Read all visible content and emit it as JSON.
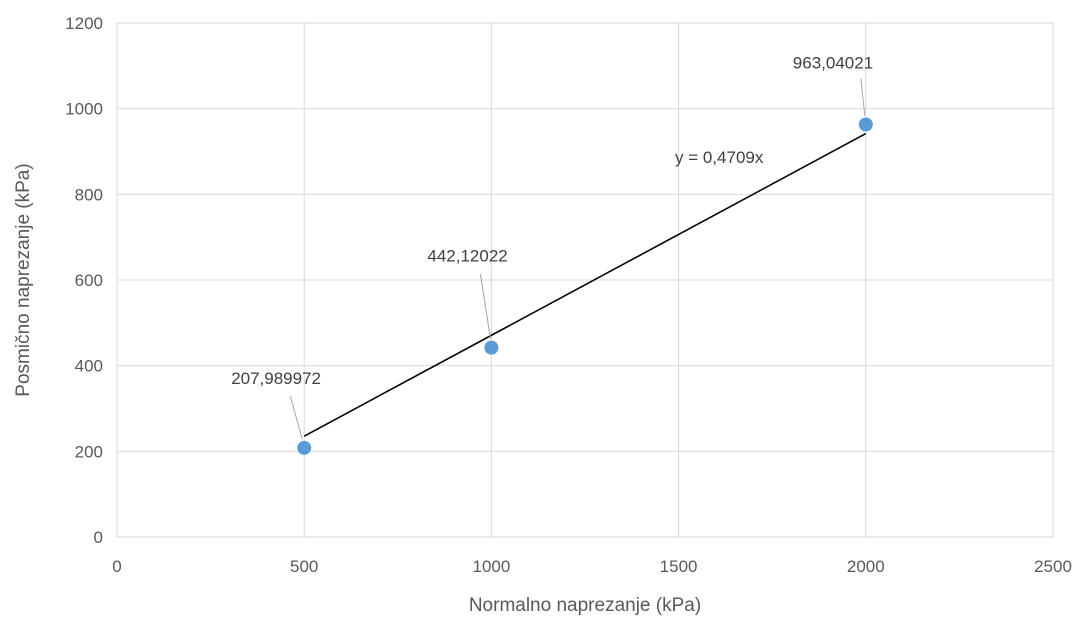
{
  "chart_data": {
    "type": "scatter",
    "xlabel": "Normalno naprezanje (kPa)",
    "ylabel": "Posmično naprezanje (kPa)",
    "xlim": [
      0,
      2500
    ],
    "ylim": [
      0,
      1200
    ],
    "x_ticks": [
      0,
      500,
      1000,
      1500,
      2000,
      2500
    ],
    "y_ticks": [
      0,
      200,
      400,
      600,
      800,
      1000,
      1200
    ],
    "grid": true,
    "series": [
      {
        "x": [
          500,
          1000,
          2000
        ],
        "y": [
          207.989972,
          442.12022,
          963.04021
        ],
        "labels": [
          "207,989972",
          "442,12022",
          "963,04021"
        ],
        "color": "#5b9bd5"
      }
    ],
    "trendline": {
      "type": "linear",
      "slope": 0.4709,
      "intercept": 0,
      "x_range": [
        500,
        2000
      ],
      "equation": "y = 0,4709x",
      "color": "#000000"
    }
  }
}
